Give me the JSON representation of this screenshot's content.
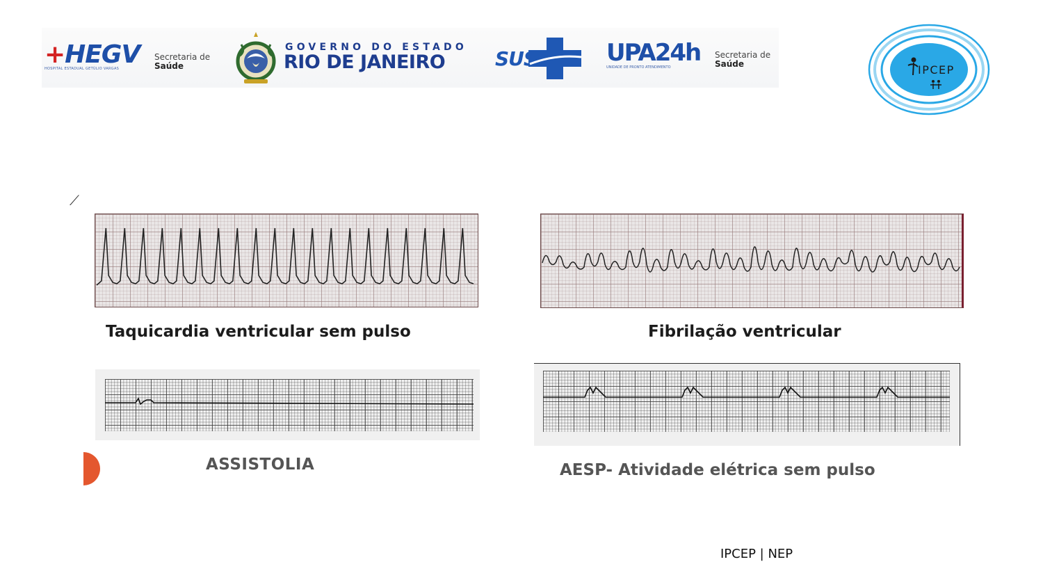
{
  "header": {
    "hegv": {
      "brand": "HEGV",
      "subtitle": "HOSPITAL ESTADUAL GETÚLIO VARGAS"
    },
    "secretaria_left": {
      "line1": "Secretaria de",
      "line2": "Saúde"
    },
    "governo": {
      "line1": "GOVERNO DO ESTADO",
      "line2": "RIO DE JANEIRO"
    },
    "sus": {
      "brand": "SUS"
    },
    "upa": {
      "brand": "UPA24h",
      "subtitle": "UNIDADE DE PRONTO ATENDIMENTO"
    },
    "secretaria_right": {
      "line1": "Secretaria de",
      "line2": "Saúde"
    },
    "ipcep": {
      "brand": "IPCEP"
    }
  },
  "strips": [
    {
      "caption": "Taquicardia ventricular sem pulso"
    },
    {
      "caption": "Fibrilação ventricular"
    },
    {
      "caption": "ASSISTOLIA"
    },
    {
      "caption": "AESP- Atividade elétrica sem pulso"
    }
  ],
  "footer": {
    "text": "IPCEP | NEP"
  },
  "colors": {
    "blue": "#1e4fa8",
    "red": "#d42424",
    "orange_accent": "#e4572e",
    "ipcep_blue": "#2aa8e6"
  }
}
